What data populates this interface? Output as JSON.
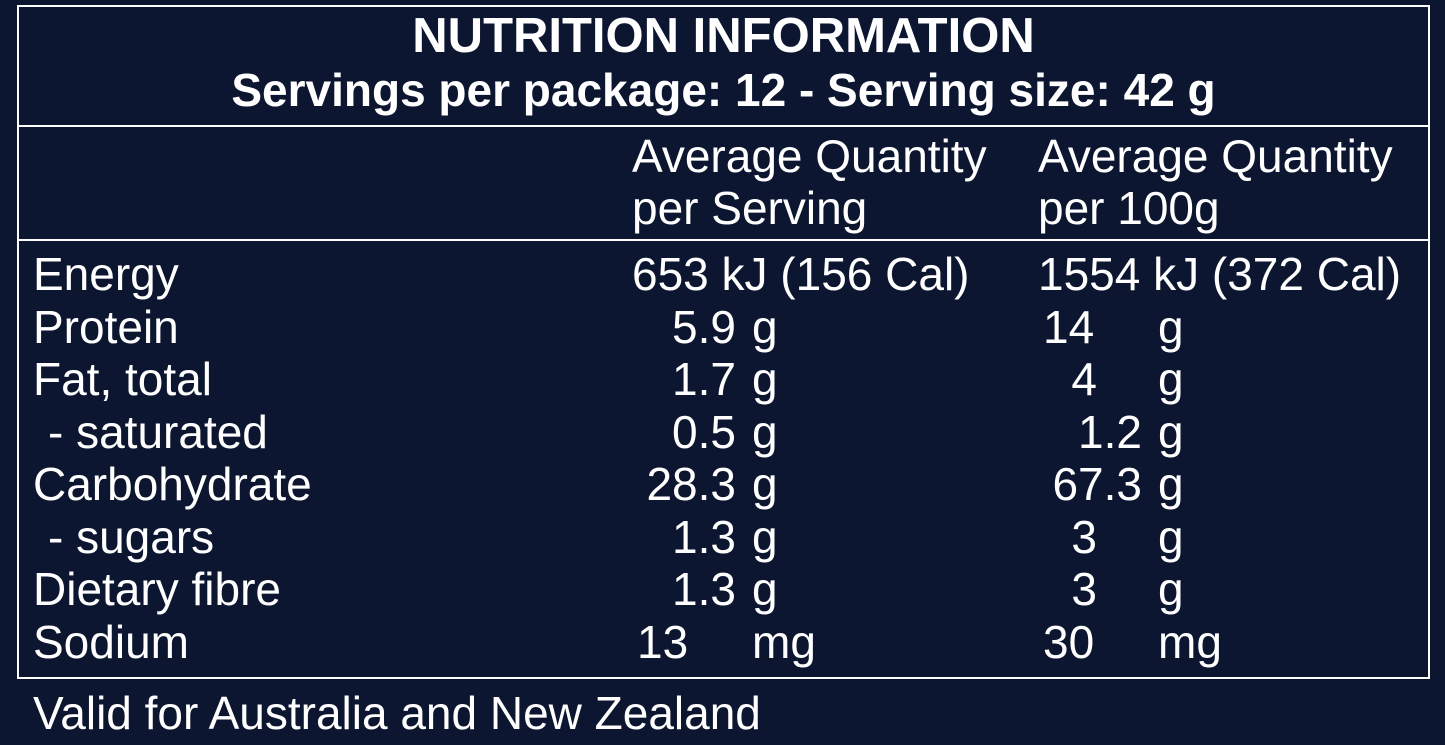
{
  "header": {
    "title": "NUTRITION INFORMATION",
    "subtitle": "Servings per package: 12 - Serving size: 42 g"
  },
  "columns": {
    "per_serving_line1": "Average Quantity",
    "per_serving_line2": "per Serving",
    "per_100g_line1": "Average Quantity",
    "per_100g_line2": "per 100g"
  },
  "rows": [
    {
      "name": "Energy",
      "serving": "653 kJ (156 Cal)",
      "per100": "1554 kJ (372 Cal)"
    },
    {
      "name": "Protein",
      "serving_value": "5.9",
      "serving_unit": "g",
      "per100_value": "14",
      "per100_unit": "g"
    },
    {
      "name": "Fat, total",
      "serving_value": "1.7",
      "serving_unit": "g",
      "per100_value": "4",
      "per100_unit": "g"
    },
    {
      "name": "- saturated",
      "serving_value": "0.5",
      "serving_unit": "g",
      "per100_value": "1.2",
      "per100_unit": "g"
    },
    {
      "name": "Carbohydrate",
      "serving_value": "28.3",
      "serving_unit": "g",
      "per100_value": "67.3",
      "per100_unit": "g"
    },
    {
      "name": "- sugars",
      "serving_value": "1.3",
      "serving_unit": "g",
      "per100_value": "3",
      "per100_unit": "g"
    },
    {
      "name": "Dietary fibre",
      "serving_value": "1.3",
      "serving_unit": "g",
      "per100_value": "3",
      "per100_unit": "g"
    },
    {
      "name": "Sodium",
      "serving_value": "13",
      "serving_unit": "mg",
      "per100_value": "30",
      "per100_unit": "mg"
    }
  ],
  "footer": {
    "note": "Valid for Australia and New Zealand"
  },
  "colors": {
    "background": "#0c1630",
    "text": "#ffffff",
    "rule": "#ffffff"
  }
}
